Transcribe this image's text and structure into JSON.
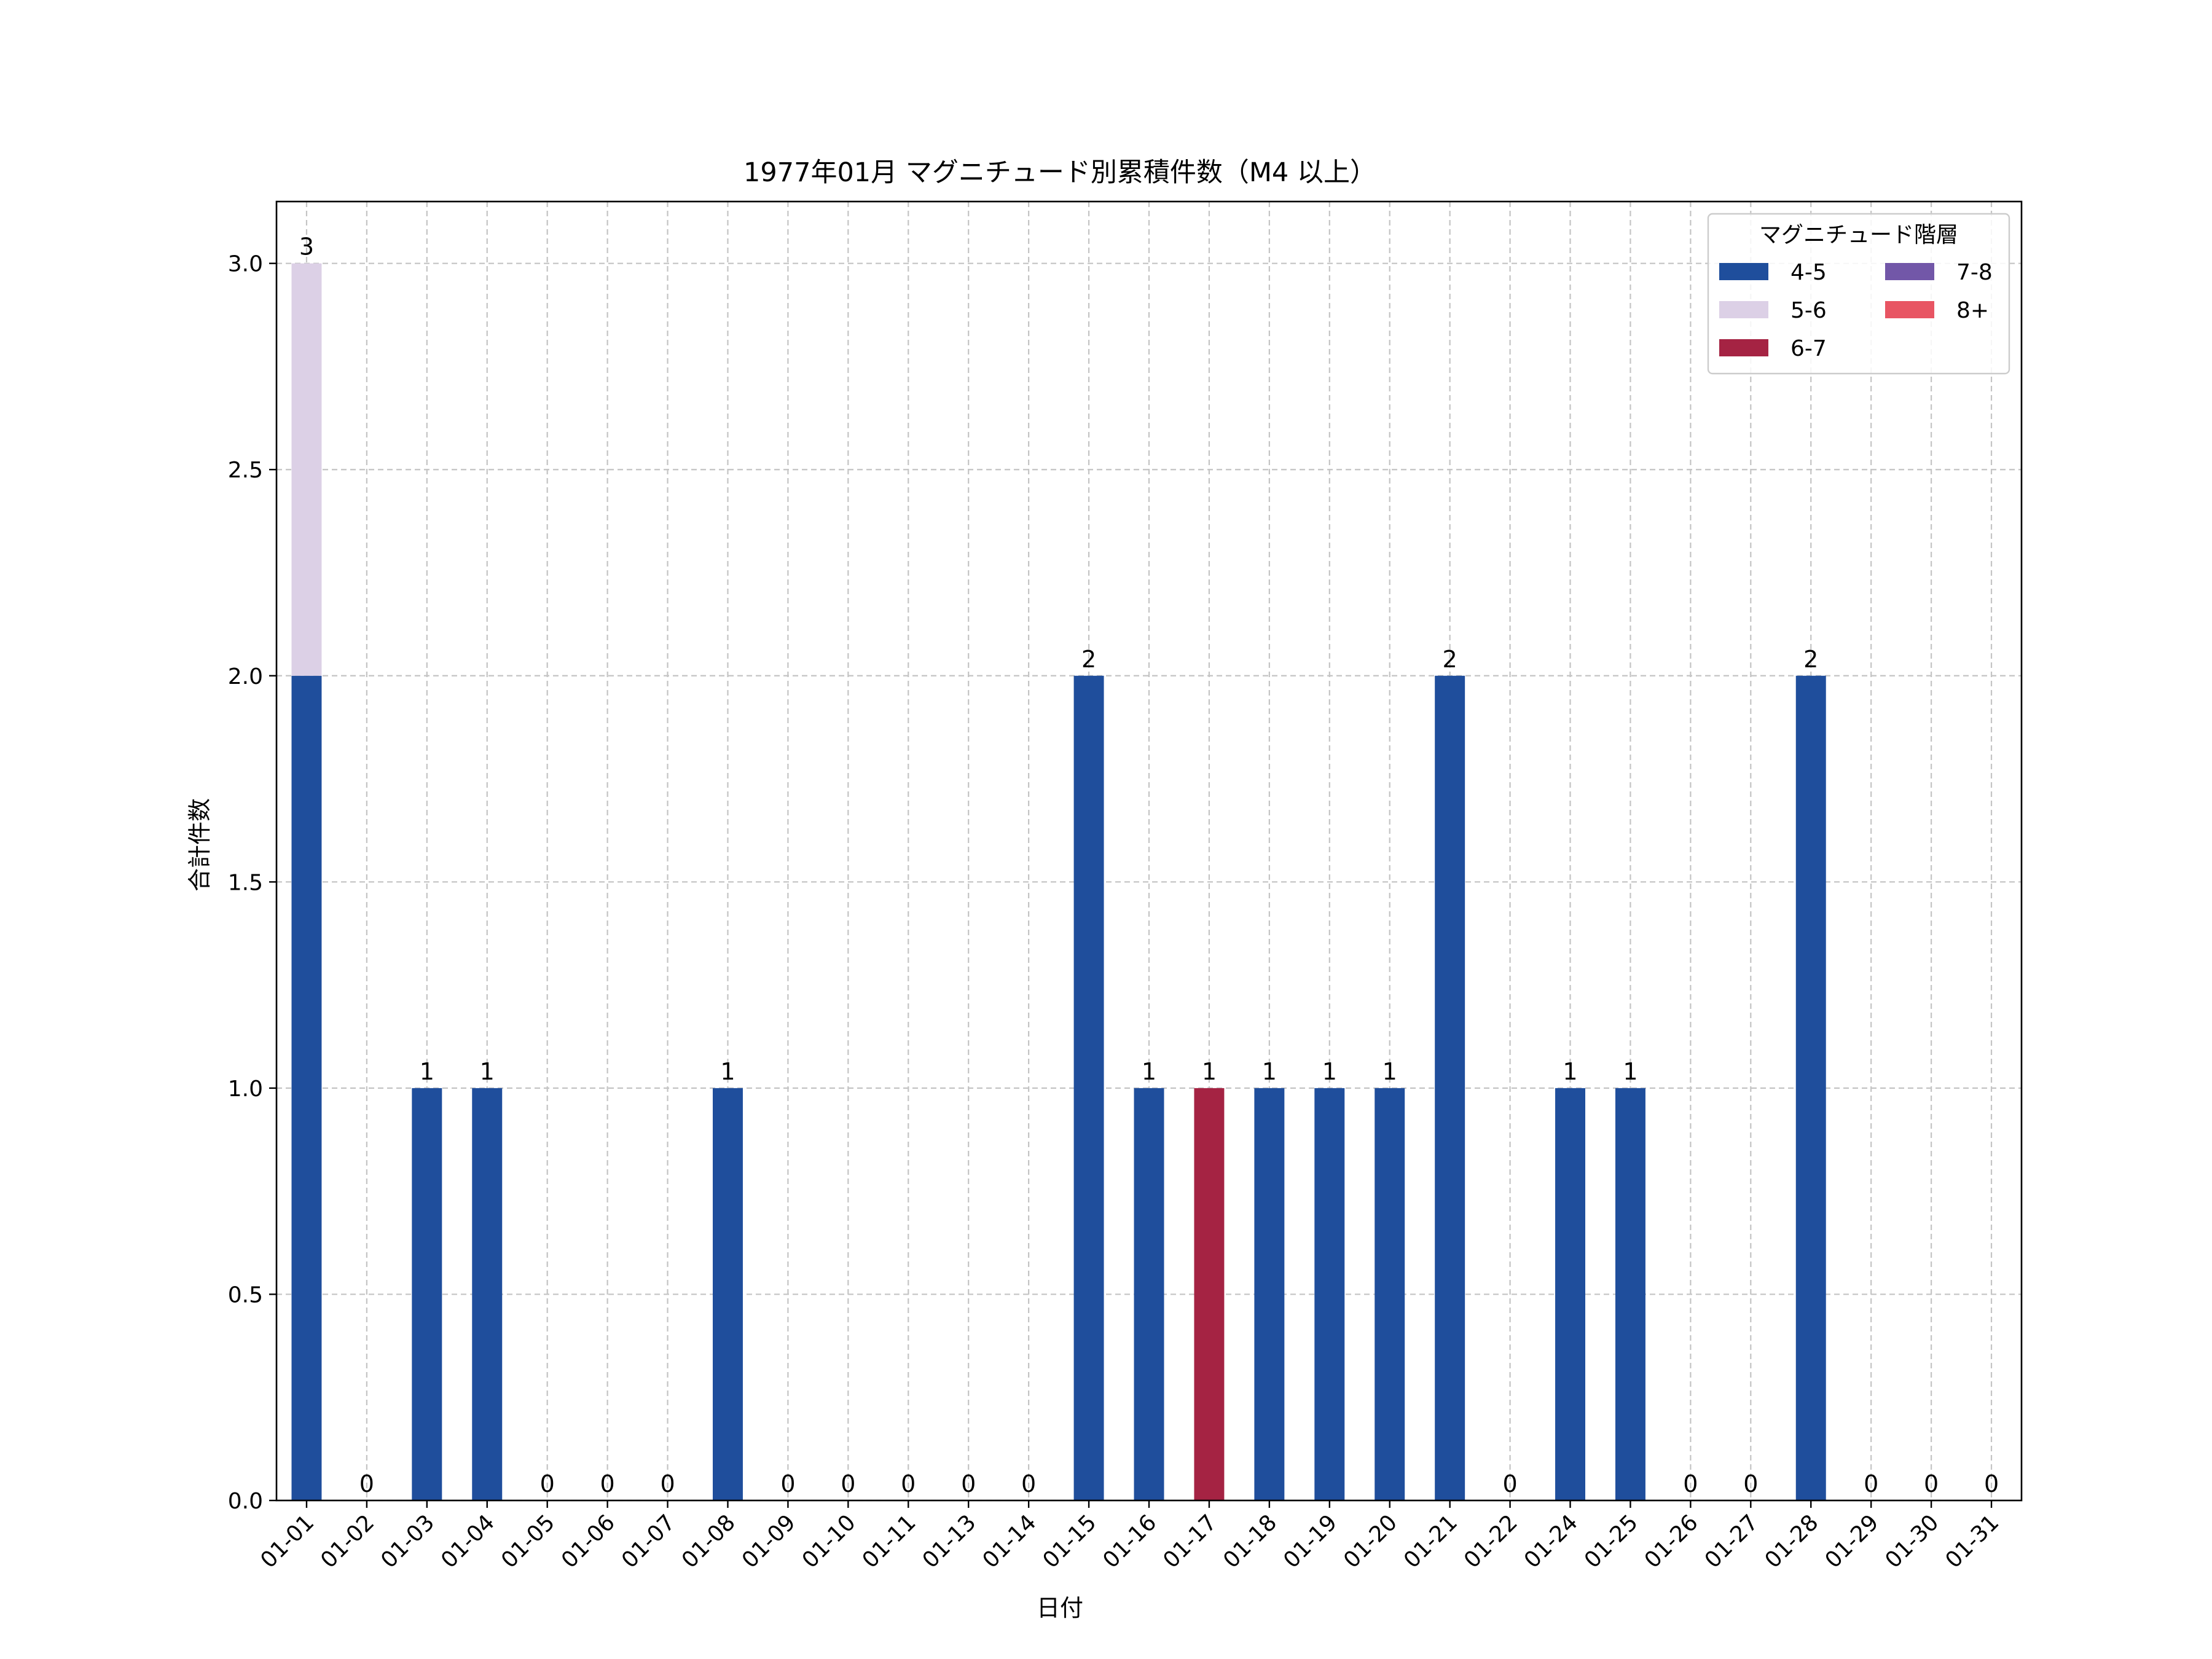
{
  "chart_data": {
    "type": "bar",
    "stacked": true,
    "title": "1977年01月 マグニチュード別累積件数（M4 以上）",
    "xlabel": "日付",
    "ylabel": "合計件数",
    "ylim": [
      0,
      3.15
    ],
    "yticks": [
      "0.0",
      "0.5",
      "1.0",
      "1.5",
      "2.0",
      "2.5",
      "3.0"
    ],
    "grid": true,
    "legend": {
      "title": "マグニチュード階層",
      "placement": "top-right",
      "columns": 2
    },
    "categories": [
      "01-01",
      "01-02",
      "01-03",
      "01-04",
      "01-05",
      "01-06",
      "01-07",
      "01-08",
      "01-09",
      "01-10",
      "01-11",
      "01-13",
      "01-14",
      "01-15",
      "01-16",
      "01-17",
      "01-18",
      "01-19",
      "01-20",
      "01-21",
      "01-22",
      "01-24",
      "01-25",
      "01-26",
      "01-27",
      "01-28",
      "01-29",
      "01-30",
      "01-31"
    ],
    "series": [
      {
        "name": "4-5",
        "color": "#1f4e9c",
        "values": [
          2,
          0,
          1,
          1,
          0,
          0,
          0,
          1,
          0,
          0,
          0,
          0,
          0,
          2,
          1,
          0,
          1,
          1,
          1,
          2,
          0,
          1,
          1,
          0,
          0,
          2,
          0,
          0,
          0
        ]
      },
      {
        "name": "5-6",
        "color": "#dcd0e6",
        "values": [
          1,
          0,
          0,
          0,
          0,
          0,
          0,
          0,
          0,
          0,
          0,
          0,
          0,
          0,
          0,
          0,
          0,
          0,
          0,
          0,
          0,
          0,
          0,
          0,
          0,
          0,
          0,
          0,
          0
        ]
      },
      {
        "name": "6-7",
        "color": "#a52343",
        "values": [
          0,
          0,
          0,
          0,
          0,
          0,
          0,
          0,
          0,
          0,
          0,
          0,
          0,
          0,
          0,
          1,
          0,
          0,
          0,
          0,
          0,
          0,
          0,
          0,
          0,
          0,
          0,
          0,
          0
        ]
      },
      {
        "name": "7-8",
        "color": "#7257a8",
        "values": [
          0,
          0,
          0,
          0,
          0,
          0,
          0,
          0,
          0,
          0,
          0,
          0,
          0,
          0,
          0,
          0,
          0,
          0,
          0,
          0,
          0,
          0,
          0,
          0,
          0,
          0,
          0,
          0,
          0
        ]
      },
      {
        "name": "8+",
        "color": "#e85563",
        "values": [
          0,
          0,
          0,
          0,
          0,
          0,
          0,
          0,
          0,
          0,
          0,
          0,
          0,
          0,
          0,
          0,
          0,
          0,
          0,
          0,
          0,
          0,
          0,
          0,
          0,
          0,
          0,
          0,
          0
        ]
      }
    ],
    "totals": [
      "3",
      "0",
      "1",
      "1",
      "0",
      "0",
      "0",
      "1",
      "0",
      "0",
      "0",
      "0",
      "0",
      "2",
      "1",
      "1",
      "1",
      "1",
      "1",
      "2",
      "0",
      "1",
      "1",
      "0",
      "0",
      "2",
      "0",
      "0",
      "0"
    ]
  }
}
